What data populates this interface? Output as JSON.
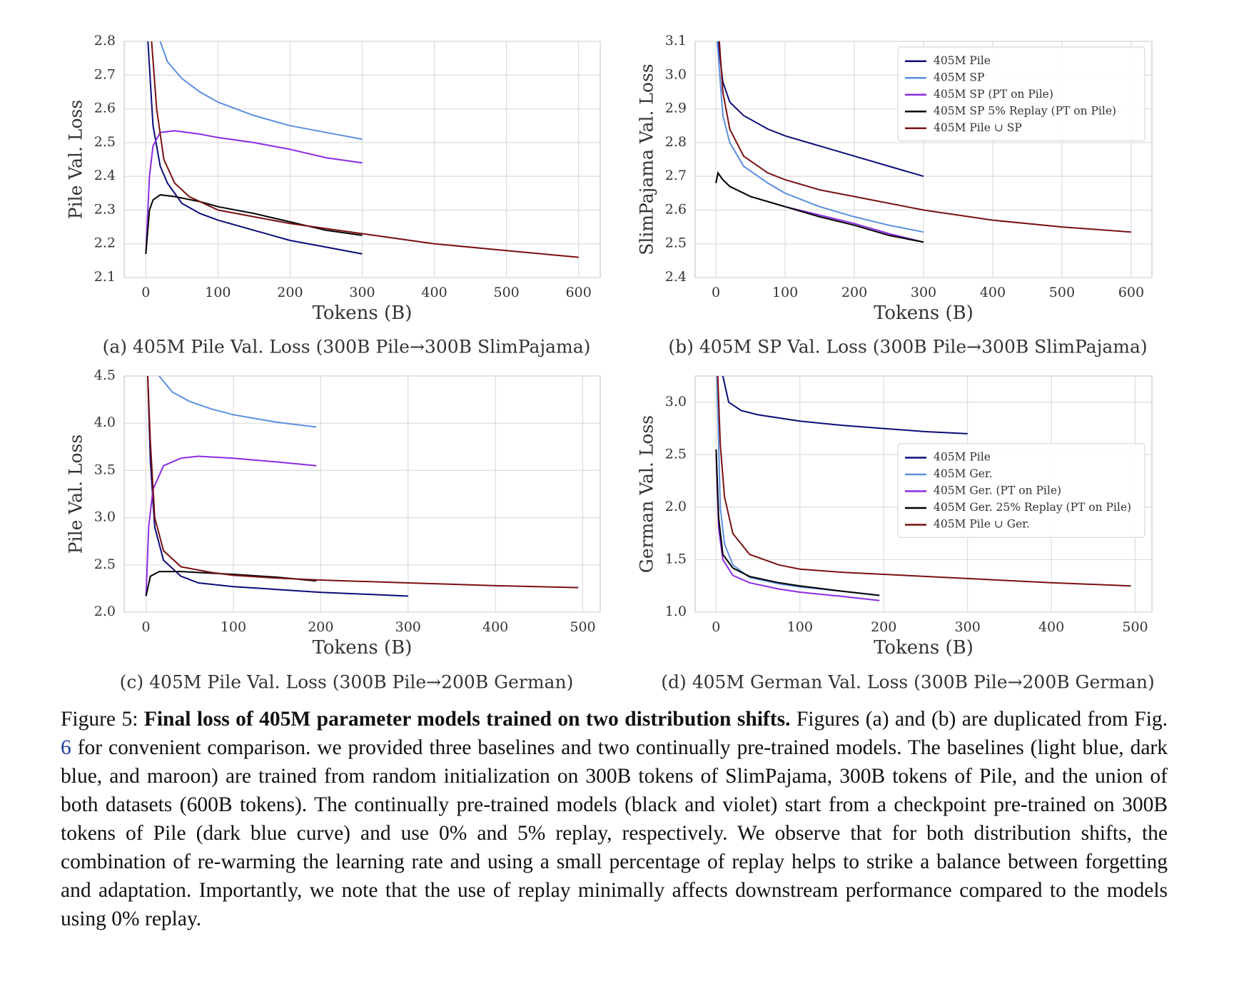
{
  "chart_data": [
    {
      "type": "line",
      "caption": "(a) 405M Pile Val. Loss (300B Pile→300B SlimPajama)",
      "xlabel": "Tokens (B)",
      "ylabel": "Pile Val. Loss",
      "xlim": [
        -30,
        630
      ],
      "ylim": [
        2.1,
        2.8
      ],
      "xticks": [
        0,
        100,
        200,
        300,
        400,
        500,
        600
      ],
      "yticks": [
        2.1,
        2.2,
        2.3,
        2.4,
        2.5,
        2.6,
        2.7,
        2.8
      ],
      "grid": true,
      "series": [
        {
          "color": "#0b0b7a",
          "x": [
            3,
            10,
            20,
            30,
            50,
            75,
            100,
            150,
            200,
            250,
            300
          ],
          "values": [
            2.8,
            2.55,
            2.43,
            2.38,
            2.32,
            2.29,
            2.27,
            2.24,
            2.21,
            2.19,
            2.17
          ]
        },
        {
          "color": "#5b8fdf",
          "x": [
            20,
            30,
            50,
            75,
            100,
            150,
            200,
            250,
            300
          ],
          "values": [
            2.8,
            2.74,
            2.69,
            2.65,
            2.62,
            2.58,
            2.55,
            2.53,
            2.51
          ]
        },
        {
          "color": "#8a2be2",
          "x": [
            0,
            5,
            10,
            20,
            40,
            75,
            100,
            150,
            200,
            250,
            300
          ],
          "values": [
            2.17,
            2.4,
            2.49,
            2.53,
            2.535,
            2.525,
            2.515,
            2.5,
            2.48,
            2.455,
            2.44
          ]
        },
        {
          "color": "#000000",
          "x": [
            0,
            5,
            10,
            20,
            40,
            75,
            100,
            150,
            200,
            250,
            300
          ],
          "values": [
            2.17,
            2.3,
            2.33,
            2.345,
            2.34,
            2.325,
            2.31,
            2.29,
            2.265,
            2.24,
            2.225
          ]
        },
        {
          "color": "#7a1010",
          "x": [
            8,
            15,
            25,
            40,
            60,
            100,
            150,
            200,
            300,
            400,
            500,
            600
          ],
          "values": [
            2.8,
            2.6,
            2.45,
            2.38,
            2.34,
            2.3,
            2.28,
            2.26,
            2.23,
            2.2,
            2.18,
            2.16
          ]
        }
      ]
    },
    {
      "type": "line",
      "caption": "(b) 405M SP Val. Loss (300B Pile→300B SlimPajama)",
      "xlabel": "Tokens (B)",
      "ylabel": "SlimPajama Val. Loss",
      "xlim": [
        -30,
        630
      ],
      "ylim": [
        2.4,
        3.1
      ],
      "xticks": [
        0,
        100,
        200,
        300,
        400,
        500,
        600
      ],
      "yticks": [
        2.4,
        2.5,
        2.6,
        2.7,
        2.8,
        2.9,
        {
          "value": 3,
          "label": "3.0"
        },
        3.1
      ],
      "grid": true,
      "legend": "upper right",
      "series": [
        {
          "name": "405M Pile",
          "color": "#0b0b7a",
          "x": [
            3,
            10,
            20,
            40,
            75,
            100,
            150,
            200,
            250,
            300
          ],
          "values": [
            3.1,
            2.98,
            2.92,
            2.88,
            2.84,
            2.82,
            2.79,
            2.76,
            2.73,
            2.7
          ]
        },
        {
          "name": "405M SP",
          "color": "#5b8fdf",
          "x": [
            2,
            10,
            20,
            40,
            75,
            100,
            150,
            200,
            250,
            300
          ],
          "values": [
            3.1,
            2.88,
            2.8,
            2.73,
            2.68,
            2.65,
            2.61,
            2.58,
            2.555,
            2.535
          ]
        },
        {
          "name": "405M SP (PT on Pile)",
          "color": "#8a2be2",
          "x": [
            0,
            3,
            10,
            20,
            50,
            100,
            150,
            200,
            250,
            300
          ],
          "values": [
            2.68,
            2.71,
            2.69,
            2.67,
            2.64,
            2.61,
            2.585,
            2.56,
            2.53,
            2.505
          ]
        },
        {
          "name": "405M SP 5% Replay (PT on Pile)",
          "color": "#000000",
          "x": [
            0,
            3,
            10,
            20,
            50,
            100,
            150,
            200,
            250,
            300
          ],
          "values": [
            2.68,
            2.71,
            2.69,
            2.67,
            2.64,
            2.61,
            2.58,
            2.555,
            2.525,
            2.505
          ]
        },
        {
          "name": "405M Pile ∪ SP",
          "color": "#7a1010",
          "x": [
            5,
            10,
            20,
            40,
            75,
            100,
            150,
            200,
            300,
            400,
            500,
            600
          ],
          "values": [
            3.1,
            2.95,
            2.84,
            2.76,
            2.71,
            2.69,
            2.66,
            2.64,
            2.6,
            2.57,
            2.55,
            2.535
          ]
        }
      ]
    },
    {
      "type": "line",
      "caption": "(c) 405M Pile Val. Loss (300B Pile→200B German)",
      "xlabel": "Tokens (B)",
      "ylabel": "Pile Val. Loss",
      "xlim": [
        -25,
        520
      ],
      "ylim": [
        2,
        4.5
      ],
      "xticks": [
        0,
        100,
        200,
        300,
        400,
        500
      ],
      "yticks": [
        {
          "value": 2,
          "label": "2.0"
        },
        2.5,
        {
          "value": 3,
          "label": "3.0"
        },
        3.5,
        {
          "value": 4,
          "label": "4.0"
        },
        4.5
      ],
      "grid": true,
      "series": [
        {
          "color": "#0b0b7a",
          "x": [
            2,
            5,
            10,
            20,
            40,
            60,
            100,
            150,
            200,
            250,
            300
          ],
          "values": [
            4.5,
            3.6,
            2.9,
            2.55,
            2.38,
            2.31,
            2.27,
            2.24,
            2.21,
            2.19,
            2.17
          ]
        },
        {
          "color": "#5b8fdf",
          "x": [
            15,
            30,
            50,
            75,
            100,
            150,
            195
          ],
          "values": [
            4.5,
            4.33,
            4.23,
            4.15,
            4.09,
            4.01,
            3.96
          ]
        },
        {
          "color": "#8a2be2",
          "x": [
            0,
            3,
            8,
            20,
            40,
            60,
            100,
            150,
            195
          ],
          "values": [
            2.17,
            2.9,
            3.3,
            3.55,
            3.63,
            3.65,
            3.63,
            3.59,
            3.55
          ]
        },
        {
          "color": "#000000",
          "x": [
            0,
            5,
            15,
            40,
            100,
            150,
            195
          ],
          "values": [
            2.17,
            2.38,
            2.43,
            2.43,
            2.4,
            2.37,
            2.33
          ]
        },
        {
          "color": "#7a1010",
          "x": [
            2,
            5,
            10,
            20,
            40,
            75,
            100,
            150,
            200,
            300,
            400,
            495
          ],
          "values": [
            4.5,
            3.8,
            3,
            2.65,
            2.48,
            2.42,
            2.39,
            2.36,
            2.34,
            2.31,
            2.28,
            2.26
          ]
        }
      ]
    },
    {
      "type": "line",
      "caption": "(d) 405M German Val. Loss (300B Pile→200B German)",
      "xlabel": "Tokens (B)",
      "ylabel": "German Val. Loss",
      "xlim": [
        -25,
        520
      ],
      "ylim": [
        1,
        3.25
      ],
      "xticks": [
        0,
        100,
        200,
        300,
        400,
        500
      ],
      "yticks": [
        {
          "value": 1,
          "label": "1.0"
        },
        1.5,
        {
          "value": 2,
          "label": "2.0"
        },
        2.5,
        {
          "value": 3,
          "label": "3.0"
        }
      ],
      "grid": true,
      "legend": "center right",
      "series": [
        {
          "name": "405M Pile",
          "color": "#0b0b7a",
          "x": [
            8,
            15,
            30,
            50,
            100,
            150,
            200,
            250,
            300
          ],
          "values": [
            3.25,
            3,
            2.92,
            2.88,
            2.82,
            2.78,
            2.75,
            2.72,
            2.7
          ]
        },
        {
          "name": "405M Ger.",
          "color": "#5b8fdf",
          "x": [
            1,
            5,
            10,
            20,
            40,
            75,
            100,
            150,
            195
          ],
          "values": [
            3.25,
            2,
            1.65,
            1.45,
            1.33,
            1.27,
            1.24,
            1.2,
            1.16
          ]
        },
        {
          "name": "405M Ger. (PT on Pile)",
          "color": "#8a2be2",
          "x": [
            0,
            3,
            8,
            20,
            40,
            75,
            100,
            150,
            195
          ],
          "values": [
            2.5,
            1.8,
            1.5,
            1.35,
            1.28,
            1.22,
            1.19,
            1.15,
            1.11
          ]
        },
        {
          "name": "405M Ger. 25% Replay (PT on Pile)",
          "color": "#000000",
          "x": [
            0,
            3,
            8,
            20,
            40,
            75,
            100,
            150,
            195
          ],
          "values": [
            2.55,
            1.9,
            1.55,
            1.42,
            1.34,
            1.28,
            1.25,
            1.2,
            1.16
          ]
        },
        {
          "name": "405M Pile ∪ Ger.",
          "color": "#7a1010",
          "x": [
            2,
            5,
            10,
            20,
            40,
            75,
            100,
            150,
            200,
            300,
            400,
            495
          ],
          "values": [
            3.25,
            2.6,
            2.1,
            1.75,
            1.55,
            1.45,
            1.41,
            1.38,
            1.36,
            1.32,
            1.28,
            1.25
          ]
        }
      ]
    }
  ],
  "caption": {
    "label": "Figure 5:",
    "title": "Final loss of 405M parameter models trained on two distribution shifts.",
    "text_before": "Figures (a) and (b) are duplicated from Fig.",
    "ref": "6",
    "text_after": "for convenient comparison. we provided three baselines and two continually pre-trained models. The baselines (light blue, dark blue, and maroon) are trained from random initialization on 300B tokens of SlimPajama, 300B tokens of Pile, and the union of both datasets (600B tokens). The continually pre-trained models (black and violet) start from a checkpoint pre-trained on 300B tokens of Pile (dark blue curve) and use 0% and 5% replay, respectively. We observe that for both distribution shifts, the combination of re-warming the learning rate and using a small percentage of replay helps to strike a balance between forgetting and adaptation. Importantly, we note that the use of replay minimally affects downstream performance compared to the models using 0% replay."
  }
}
